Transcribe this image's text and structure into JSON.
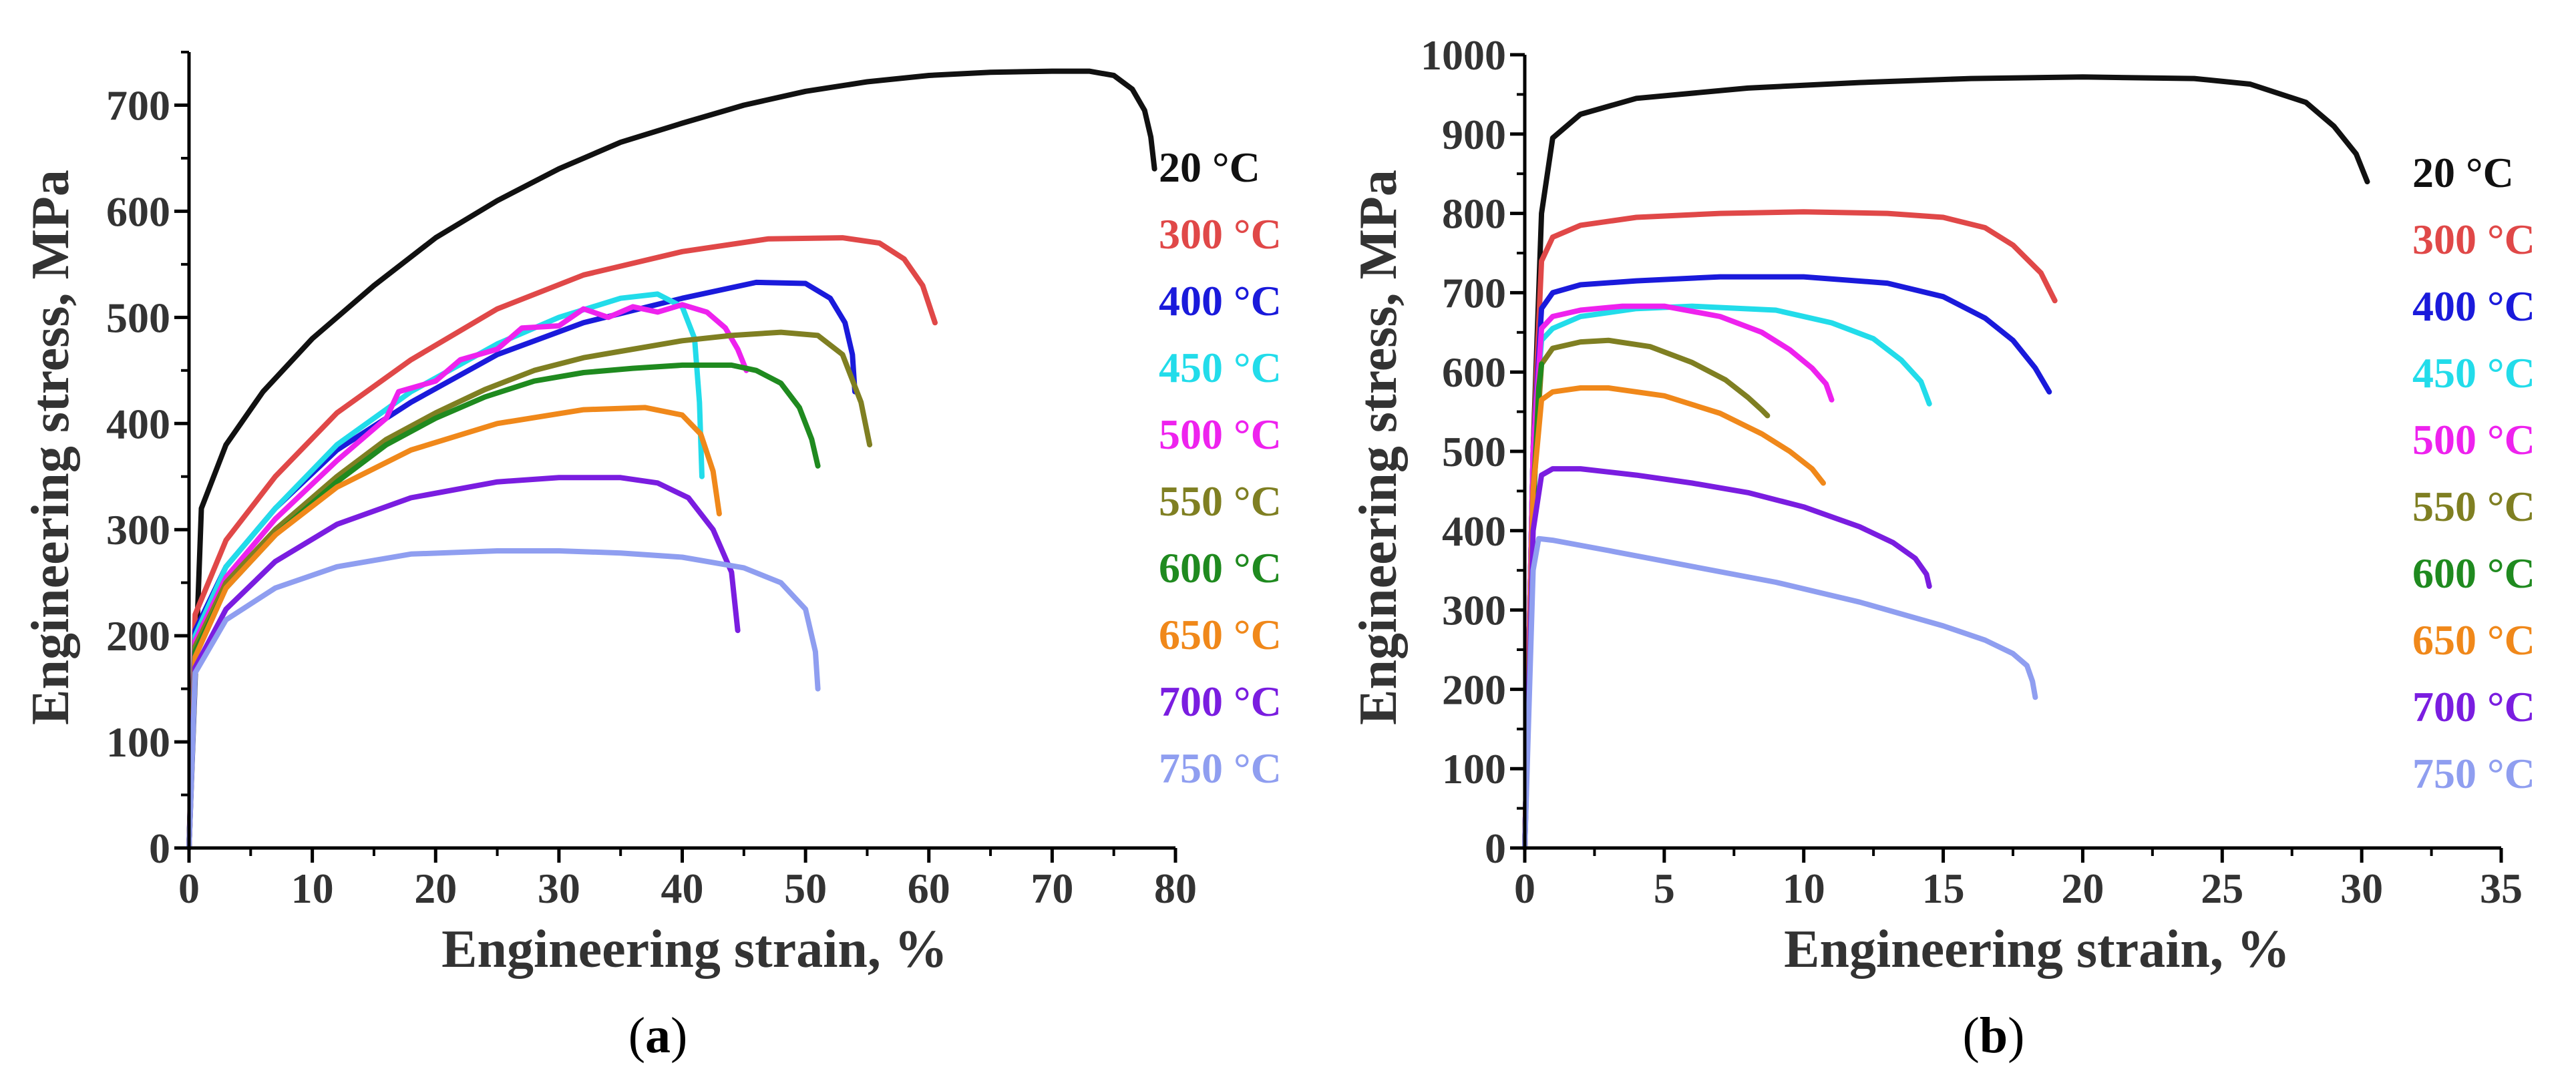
{
  "chart_data": [
    {
      "panel": "a",
      "caption_left": "(",
      "caption_letter": "a",
      "caption_right": ")",
      "type": "line",
      "xlabel": "Engineering strain, %",
      "ylabel": "Engineering stress, MPa",
      "xlim": [
        0,
        80
      ],
      "ylim": [
        0,
        750
      ],
      "xticks": [
        "0",
        "10",
        "20",
        "30",
        "40",
        "50",
        "60",
        "70",
        "80"
      ],
      "yticks": [
        "0",
        "100",
        "200",
        "300",
        "400",
        "500",
        "600",
        "700"
      ],
      "legend_position": "right",
      "series": [
        {
          "name": "20 °C",
          "color": "#111111",
          "x": [
            0,
            1,
            3,
            6,
            10,
            15,
            20,
            25,
            30,
            35,
            40,
            45,
            50,
            55,
            60,
            65,
            70,
            73,
            75,
            76.5,
            77.5,
            78,
            78.3
          ],
          "y": [
            0,
            320,
            380,
            430,
            480,
            530,
            575,
            610,
            640,
            665,
            683,
            700,
            713,
            722,
            728,
            731,
            732,
            732,
            728,
            715,
            695,
            670,
            640
          ]
        },
        {
          "name": "300 °C",
          "color": "#e04848",
          "x": [
            0,
            0.5,
            3,
            7,
            12,
            18,
            25,
            32,
            40,
            47,
            53,
            56,
            58,
            59.5,
            60.5
          ],
          "y": [
            0,
            220,
            290,
            350,
            410,
            460,
            508,
            540,
            562,
            574,
            575,
            570,
            555,
            530,
            495
          ]
        },
        {
          "name": "400 °C",
          "color": "#1a1adb",
          "x": [
            0,
            0.5,
            3,
            7,
            12,
            18,
            25,
            32,
            40,
            46,
            50,
            52,
            53.2,
            53.8,
            54
          ],
          "y": [
            0,
            205,
            265,
            320,
            375,
            420,
            465,
            495,
            518,
            533,
            532,
            518,
            495,
            465,
            430
          ]
        },
        {
          "name": "450 °C",
          "color": "#22dcea",
          "x": [
            0,
            0.5,
            3,
            7,
            12,
            18,
            25,
            30,
            35,
            38,
            40,
            41,
            41.4,
            41.6
          ],
          "y": [
            0,
            200,
            265,
            320,
            380,
            430,
            475,
            500,
            518,
            522,
            510,
            480,
            420,
            350
          ]
        },
        {
          "name": "500 °C",
          "color": "#ee22ee",
          "x": [
            0,
            0.5,
            3,
            7,
            12,
            16,
            17,
            20,
            22,
            25,
            27,
            30,
            32,
            34,
            36,
            38,
            40,
            42,
            43.5,
            44.5,
            45.2
          ],
          "y": [
            0,
            195,
            255,
            310,
            365,
            405,
            430,
            440,
            460,
            470,
            490,
            492,
            508,
            500,
            510,
            505,
            512,
            505,
            490,
            470,
            450
          ]
        },
        {
          "name": "550 °C",
          "color": "#7f7f22",
          "x": [
            0,
            0.5,
            3,
            7,
            12,
            16,
            20,
            24,
            28,
            32,
            36,
            40,
            44,
            48,
            51,
            53,
            54.5,
            55.2
          ],
          "y": [
            0,
            190,
            250,
            300,
            350,
            385,
            410,
            432,
            450,
            462,
            470,
            478,
            483,
            486,
            483,
            465,
            420,
            380
          ]
        },
        {
          "name": "600 °C",
          "color": "#1f8a1f",
          "x": [
            0,
            0.5,
            3,
            7,
            12,
            16,
            20,
            24,
            28,
            32,
            36,
            40,
            44,
            46,
            48,
            49.5,
            50.5,
            51
          ],
          "y": [
            0,
            185,
            245,
            295,
            345,
            380,
            405,
            425,
            440,
            448,
            452,
            455,
            455,
            450,
            438,
            415,
            385,
            360
          ]
        },
        {
          "name": "650 °C",
          "color": "#f0881a",
          "x": [
            0,
            0.5,
            3,
            7,
            12,
            18,
            25,
            32,
            37,
            40,
            41.5,
            42.5,
            43
          ],
          "y": [
            0,
            180,
            245,
            295,
            340,
            375,
            400,
            413,
            415,
            408,
            390,
            355,
            315
          ]
        },
        {
          "name": "700 °C",
          "color": "#7a1de0",
          "x": [
            0,
            0.5,
            3,
            7,
            12,
            18,
            25,
            30,
            35,
            38,
            40.5,
            42.5,
            44,
            44.5
          ],
          "y": [
            0,
            170,
            225,
            270,
            305,
            330,
            345,
            349,
            349,
            344,
            330,
            300,
            260,
            205
          ]
        },
        {
          "name": "750 °C",
          "color": "#8f9ef0",
          "x": [
            0,
            0.5,
            3,
            7,
            12,
            18,
            25,
            30,
            35,
            40,
            45,
            48,
            50,
            50.8,
            51
          ],
          "y": [
            0,
            165,
            215,
            245,
            265,
            277,
            280,
            280,
            278,
            274,
            264,
            250,
            225,
            185,
            150
          ]
        }
      ]
    },
    {
      "panel": "b",
      "caption_left": "(",
      "caption_letter": "b",
      "caption_right": ")",
      "type": "line",
      "xlabel": "Engineering strain, %",
      "ylabel": "Engineering stress, MPa",
      "xlim": [
        0,
        35
      ],
      "ylim": [
        0,
        1000
      ],
      "xticks": [
        "0",
        "5",
        "10",
        "15",
        "20",
        "25",
        "30",
        "35"
      ],
      "yticks": [
        "0",
        "100",
        "200",
        "300",
        "400",
        "500",
        "600",
        "700",
        "800",
        "900",
        "1000"
      ],
      "legend_position": "right",
      "series": [
        {
          "name": "20 °C",
          "color": "#111111",
          "x": [
            0,
            0.3,
            0.6,
            1,
            2,
            4,
            8,
            12,
            16,
            20,
            24,
            26,
            28,
            29,
            29.8,
            30.2
          ],
          "y": [
            0,
            500,
            800,
            895,
            925,
            945,
            958,
            965,
            970,
            972,
            970,
            963,
            940,
            910,
            875,
            840
          ]
        },
        {
          "name": "300 °C",
          "color": "#e04848",
          "x": [
            0,
            0.3,
            0.6,
            1,
            2,
            4,
            7,
            10,
            13,
            15,
            16.5,
            17.5,
            18.5,
            19
          ],
          "y": [
            0,
            500,
            740,
            770,
            785,
            795,
            800,
            802,
            800,
            795,
            782,
            760,
            725,
            690
          ]
        },
        {
          "name": "400 °C",
          "color": "#1a1adb",
          "x": [
            0,
            0.3,
            0.6,
            1,
            2,
            4,
            7,
            10,
            13,
            15,
            16.5,
            17.5,
            18.3,
            18.8
          ],
          "y": [
            0,
            500,
            680,
            700,
            710,
            715,
            720,
            720,
            712,
            695,
            668,
            640,
            605,
            575
          ]
        },
        {
          "name": "450 °C",
          "color": "#22dcea",
          "x": [
            0,
            0.3,
            0.6,
            1,
            2,
            4,
            6,
            9,
            11,
            12.5,
            13.5,
            14.2,
            14.5
          ],
          "y": [
            0,
            500,
            640,
            655,
            670,
            680,
            683,
            678,
            662,
            642,
            615,
            588,
            560
          ]
        },
        {
          "name": "500 °C",
          "color": "#ee22ee",
          "x": [
            0,
            0.3,
            0.6,
            1,
            2,
            3.5,
            5,
            7,
            8.5,
            9.5,
            10.3,
            10.8,
            11
          ],
          "y": [
            0,
            500,
            655,
            670,
            678,
            683,
            683,
            670,
            650,
            628,
            605,
            585,
            565
          ]
        },
        {
          "name": "550 °C",
          "color": "#7f7f22",
          "x": [
            0,
            0.3,
            0.6,
            1,
            2,
            3,
            4.5,
            6,
            7.2,
            8,
            8.5,
            8.7
          ],
          "y": [
            0,
            450,
            610,
            630,
            638,
            640,
            632,
            612,
            590,
            568,
            552,
            545
          ]
        },
        {
          "name": "600 °C",
          "color": "#1f8a1f",
          "x": [
            0,
            0.3,
            0.5,
            0.6
          ],
          "y": [
            0,
            420,
            580,
            610
          ]
        },
        {
          "name": "650 °C",
          "color": "#f0881a",
          "x": [
            0,
            0.3,
            0.6,
            1,
            2,
            3,
            5,
            7,
            8.5,
            9.5,
            10.3,
            10.7
          ],
          "y": [
            0,
            450,
            565,
            575,
            580,
            580,
            570,
            548,
            522,
            500,
            478,
            460
          ]
        },
        {
          "name": "700 °C",
          "color": "#7a1de0",
          "x": [
            0,
            0.3,
            0.6,
            1,
            2,
            4,
            6,
            8,
            10,
            12,
            13.2,
            14,
            14.4,
            14.5
          ],
          "y": [
            0,
            400,
            470,
            478,
            478,
            470,
            460,
            448,
            430,
            405,
            385,
            365,
            345,
            330
          ]
        },
        {
          "name": "750 °C",
          "color": "#8f9ef0",
          "x": [
            0,
            0.3,
            0.5,
            1,
            3,
            6,
            9,
            12,
            15,
            16.5,
            17.5,
            18,
            18.2,
            18.3
          ],
          "y": [
            0,
            350,
            390,
            388,
            375,
            355,
            335,
            310,
            280,
            262,
            245,
            230,
            210,
            190
          ]
        }
      ]
    }
  ]
}
